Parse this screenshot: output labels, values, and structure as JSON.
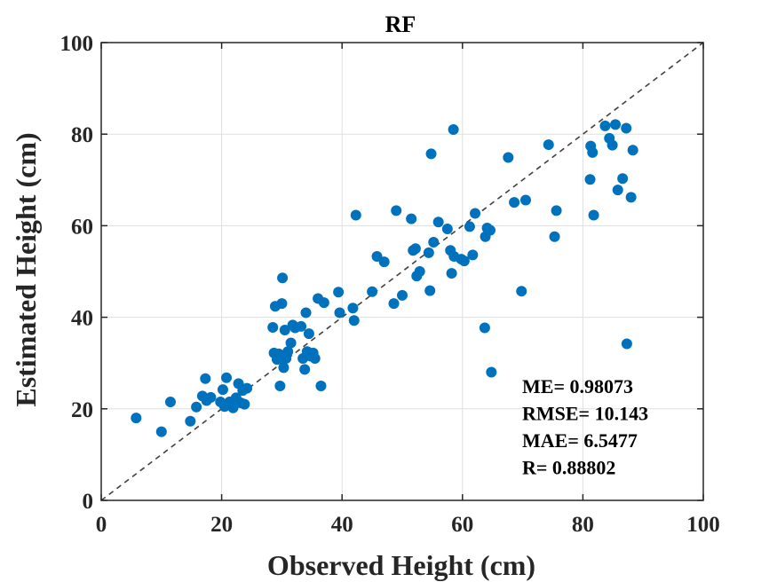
{
  "chart_data": {
    "type": "scatter",
    "title": "RF",
    "xlabel": "Observed Height (cm)",
    "ylabel": "Estimated Height (cm)",
    "xlim": [
      0,
      100
    ],
    "ylim": [
      0,
      100
    ],
    "xticks": [
      "0",
      "20",
      "40",
      "60",
      "80",
      "100"
    ],
    "yticks": [
      "0",
      "20",
      "40",
      "60",
      "80",
      "100"
    ],
    "grid": true,
    "reference_line": "1:1 dashed",
    "point_color": "#0072BD",
    "stats": [
      {
        "label": "ME= 0.98073"
      },
      {
        "label": "RMSE= 10.143"
      },
      {
        "label": "MAE= 6.5477"
      },
      {
        "label": "R= 0.88802"
      }
    ],
    "points": [
      [
        5.8,
        18
      ],
      [
        10,
        15
      ],
      [
        11.5,
        21.5
      ],
      [
        14.8,
        17.3
      ],
      [
        15.8,
        20.4
      ],
      [
        16.8,
        22.8
      ],
      [
        17.3,
        26.6
      ],
      [
        17.5,
        21.8
      ],
      [
        18.2,
        22.5
      ],
      [
        19.8,
        21.5
      ],
      [
        20.2,
        24.2
      ],
      [
        20.5,
        20.5
      ],
      [
        20.8,
        26.8
      ],
      [
        21.3,
        21.5
      ],
      [
        21.9,
        20.2
      ],
      [
        22.4,
        22.4
      ],
      [
        22.8,
        25.5
      ],
      [
        23.2,
        21.3
      ],
      [
        23.5,
        24.0
      ],
      [
        23.8,
        21.0
      ],
      [
        24.2,
        24.5
      ],
      [
        28.5,
        37.8
      ],
      [
        28.7,
        32.2
      ],
      [
        28.9,
        42.4
      ],
      [
        29.2,
        30.8
      ],
      [
        29.5,
        32.0
      ],
      [
        29.7,
        25.0
      ],
      [
        30.0,
        43.0
      ],
      [
        30.1,
        48.6
      ],
      [
        30.3,
        29.0
      ],
      [
        30.5,
        37.2
      ],
      [
        30.7,
        31.0
      ],
      [
        31.0,
        32.5
      ],
      [
        31.5,
        34.4
      ],
      [
        31.8,
        38.3
      ],
      [
        32.2,
        37.7
      ],
      [
        33.2,
        38.0
      ],
      [
        33.5,
        31.0
      ],
      [
        33.8,
        28.6
      ],
      [
        34.0,
        41.0
      ],
      [
        34.2,
        32.5
      ],
      [
        34.5,
        36.4
      ],
      [
        34.8,
        31.5
      ],
      [
        35.2,
        32.2
      ],
      [
        35.5,
        31.0
      ],
      [
        36.0,
        44.1
      ],
      [
        36.5,
        25.0
      ],
      [
        37.0,
        43.2
      ],
      [
        39.4,
        45.5
      ],
      [
        39.6,
        41.0
      ],
      [
        41.8,
        42.0
      ],
      [
        42.0,
        39.3
      ],
      [
        42.3,
        62.3
      ],
      [
        45.0,
        45.6
      ],
      [
        45.8,
        53.3
      ],
      [
        47.0,
        52.1
      ],
      [
        48.6,
        43.0
      ],
      [
        49.0,
        63.3
      ],
      [
        50.0,
        44.8
      ],
      [
        51.5,
        61.5
      ],
      [
        51.8,
        54.6
      ],
      [
        52.2,
        55.0
      ],
      [
        52.4,
        49.0
      ],
      [
        52.9,
        50.0
      ],
      [
        54.4,
        54.1
      ],
      [
        54.6,
        45.8
      ],
      [
        54.8,
        75.7
      ],
      [
        55.2,
        56.4
      ],
      [
        56.0,
        60.8
      ],
      [
        57.5,
        59.3
      ],
      [
        58.0,
        54.6
      ],
      [
        58.2,
        49.6
      ],
      [
        58.5,
        81.0
      ],
      [
        58.6,
        53.3
      ],
      [
        59.8,
        52.7
      ],
      [
        60.3,
        52.3
      ],
      [
        61.2,
        59.8
      ],
      [
        61.7,
        53.6
      ],
      [
        62.1,
        62.7
      ],
      [
        63.7,
        37.7
      ],
      [
        63.8,
        57.6
      ],
      [
        64.1,
        59.5
      ],
      [
        64.6,
        59.0
      ],
      [
        64.8,
        28.0
      ],
      [
        67.6,
        74.9
      ],
      [
        68.6,
        65.1
      ],
      [
        69.8,
        45.7
      ],
      [
        70.5,
        65.6
      ],
      [
        74.3,
        77.7
      ],
      [
        75.3,
        57.6
      ],
      [
        75.6,
        63.3
      ],
      [
        81.2,
        70.1
      ],
      [
        81.3,
        77.4
      ],
      [
        81.6,
        76.0
      ],
      [
        81.8,
        62.3
      ],
      [
        83.7,
        81.8
      ],
      [
        84.4,
        79.1
      ],
      [
        84.9,
        77.6
      ],
      [
        85.4,
        82.1
      ],
      [
        85.8,
        67.8
      ],
      [
        86.6,
        70.3
      ],
      [
        87.2,
        81.3
      ],
      [
        87.3,
        34.2
      ],
      [
        88.0,
        66.2
      ],
      [
        88.3,
        76.5
      ]
    ]
  }
}
